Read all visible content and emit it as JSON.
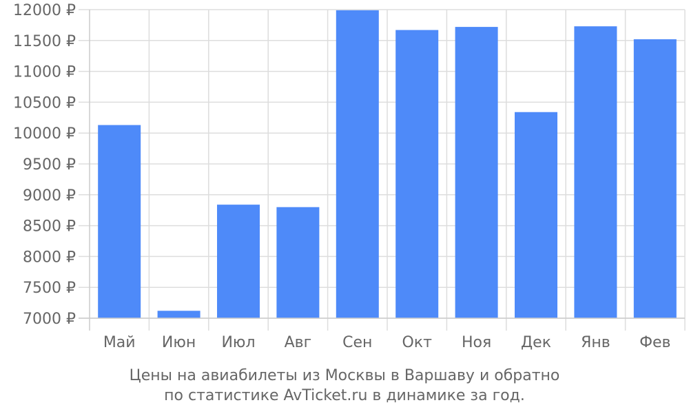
{
  "chart_data": {
    "type": "bar",
    "categories": [
      "Май",
      "Июн",
      "Июл",
      "Авг",
      "Сен",
      "Окт",
      "Ноя",
      "Дек",
      "Янв",
      "Фев"
    ],
    "values": [
      10130,
      7120,
      8840,
      8800,
      11990,
      11670,
      11720,
      10340,
      11730,
      11520
    ],
    "ylim": [
      7000,
      12000
    ],
    "yticks": [
      "7000 ₽",
      "7500 ₽",
      "8000 ₽",
      "8500 ₽",
      "9000 ₽",
      "9500 ₽",
      "10000 ₽",
      "10500 ₽",
      "11000 ₽",
      "11500 ₽",
      "12000 ₽"
    ],
    "ytick_values": [
      7000,
      7500,
      8000,
      8500,
      9000,
      9500,
      10000,
      10500,
      11000,
      11500,
      12000
    ],
    "grid": true,
    "bar_color": "#4e8af9",
    "grid_color": "#dddddd",
    "text_color": "#666666",
    "caption": [
      "Цены на авиабилеты из Москвы в Варшаву и обратно",
      "по статистике AvTicket.ru в динамике за год."
    ]
  }
}
